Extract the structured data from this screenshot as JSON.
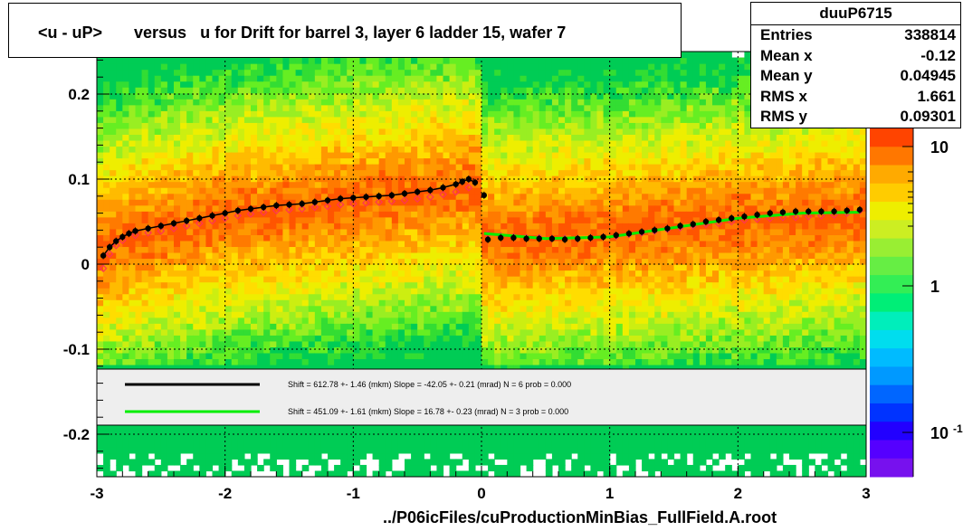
{
  "title": "<u - uP>       versus   u for Drift for barrel 3, layer 6 ladder 15, wafer 7",
  "stats": {
    "name": "duuP6715",
    "rows": [
      {
        "label": "Entries",
        "value": "338814"
      },
      {
        "label": "Mean x",
        "value": "-0.12"
      },
      {
        "label": "Mean y",
        "value": "0.04945"
      },
      {
        "label": "RMS x",
        "value": "1.661"
      },
      {
        "label": "RMS y",
        "value": "0.09301"
      }
    ]
  },
  "footer": "../P06icFiles/cuProductionMinBias_FullField.A.root",
  "legend": [
    {
      "line_color": "#000000",
      "text": "Shift =   612.78 +- 1.46 (mkm) Slope =   -42.05 +- 0.21 (mrad)  N = 6 prob = 0.000"
    },
    {
      "line_color": "#00ee00",
      "text": "Shift =   451.09 +- 1.61 (mkm) Slope =    16.78 +- 0.23 (mrad)  N = 3 prob = 0.000"
    }
  ],
  "colorbar": {
    "tick_labels": [
      "10",
      "1",
      "10"
    ],
    "last_exponent": "-1"
  },
  "chart_data": {
    "type": "heatmap",
    "xlim": [
      -3,
      3
    ],
    "ylim": [
      -0.25,
      0.25
    ],
    "x_ticks": [
      "-3",
      "-2",
      "-1",
      "0",
      "1",
      "2",
      "3"
    ],
    "y_ticks": [
      "0.2",
      "0.1",
      "0",
      "-0.1",
      "-0.2"
    ],
    "y_tick_values": [
      0.2,
      0.1,
      0,
      -0.1,
      -0.2
    ],
    "grid": true,
    "z_scale": "log",
    "series": [
      {
        "color": "#000000",
        "points": [
          [
            -2.95,
            0.01
          ],
          [
            -2.9,
            0.02
          ],
          [
            -2.85,
            0.027
          ],
          [
            -2.8,
            0.032
          ],
          [
            -2.75,
            0.036
          ],
          [
            -2.7,
            0.039
          ],
          [
            -2.6,
            0.042
          ],
          [
            -2.5,
            0.045
          ],
          [
            -2.4,
            0.048
          ],
          [
            -2.3,
            0.051
          ],
          [
            -2.2,
            0.054
          ],
          [
            -2.1,
            0.057
          ],
          [
            -2.0,
            0.06
          ],
          [
            -1.9,
            0.063
          ],
          [
            -1.8,
            0.065
          ],
          [
            -1.7,
            0.067
          ],
          [
            -1.6,
            0.069
          ],
          [
            -1.5,
            0.07
          ],
          [
            -1.4,
            0.071
          ],
          [
            -1.3,
            0.073
          ],
          [
            -1.2,
            0.075
          ],
          [
            -1.1,
            0.077
          ],
          [
            -1.0,
            0.078
          ],
          [
            -0.9,
            0.079
          ],
          [
            -0.8,
            0.08
          ],
          [
            -0.7,
            0.081
          ],
          [
            -0.6,
            0.083
          ],
          [
            -0.5,
            0.085
          ],
          [
            -0.4,
            0.087
          ],
          [
            -0.3,
            0.09
          ],
          [
            -0.2,
            0.094
          ],
          [
            -0.15,
            0.097
          ],
          [
            -0.1,
            0.1
          ],
          [
            -0.05,
            0.096
          ],
          [
            0.02,
            0.081
          ],
          [
            0.05,
            0.029
          ],
          [
            0.15,
            0.031
          ],
          [
            0.25,
            0.031
          ],
          [
            0.35,
            0.03
          ],
          [
            0.45,
            0.03
          ],
          [
            0.55,
            0.03
          ],
          [
            0.65,
            0.029
          ],
          [
            0.75,
            0.03
          ],
          [
            0.85,
            0.031
          ],
          [
            0.95,
            0.032
          ],
          [
            1.05,
            0.034
          ],
          [
            1.15,
            0.036
          ],
          [
            1.25,
            0.038
          ],
          [
            1.35,
            0.04
          ],
          [
            1.45,
            0.042
          ],
          [
            1.55,
            0.045
          ],
          [
            1.65,
            0.047
          ],
          [
            1.75,
            0.05
          ],
          [
            1.85,
            0.052
          ],
          [
            1.95,
            0.054
          ],
          [
            2.05,
            0.056
          ],
          [
            2.15,
            0.058
          ],
          [
            2.25,
            0.06
          ],
          [
            2.35,
            0.061
          ],
          [
            2.45,
            0.062
          ],
          [
            2.55,
            0.062
          ],
          [
            2.65,
            0.062
          ],
          [
            2.75,
            0.062
          ],
          [
            2.85,
            0.063
          ],
          [
            2.95,
            0.064
          ]
        ]
      },
      {
        "color": "#ff3355",
        "points": [
          [
            -2.95,
            -0.005
          ],
          [
            -2.9,
            0.012
          ],
          [
            -2.85,
            0.022
          ],
          [
            -2.8,
            0.028
          ],
          [
            -2.7,
            0.034
          ],
          [
            -2.6,
            0.037
          ],
          [
            -2.5,
            0.039
          ],
          [
            -2.4,
            0.042
          ],
          [
            -2.3,
            0.045
          ],
          [
            -2.2,
            0.048
          ],
          [
            -2.1,
            0.051
          ],
          [
            -2.0,
            0.054
          ],
          [
            -1.9,
            0.057
          ],
          [
            -1.8,
            0.059
          ],
          [
            -1.7,
            0.061
          ],
          [
            -1.6,
            0.063
          ],
          [
            -1.5,
            0.064
          ],
          [
            -1.4,
            0.065
          ],
          [
            -1.3,
            0.067
          ],
          [
            -1.2,
            0.068
          ],
          [
            -1.1,
            0.07
          ],
          [
            -1.0,
            0.071
          ],
          [
            -0.9,
            0.072
          ],
          [
            -0.8,
            0.073
          ],
          [
            -0.7,
            0.074
          ],
          [
            -0.6,
            0.075
          ],
          [
            -0.5,
            0.077
          ],
          [
            -0.4,
            0.079
          ],
          [
            -0.3,
            0.082
          ],
          [
            -0.2,
            0.085
          ],
          [
            -0.1,
            0.09
          ],
          [
            0.05,
            0.035
          ],
          [
            0.15,
            0.033
          ],
          [
            0.25,
            0.032
          ],
          [
            0.35,
            0.031
          ],
          [
            0.45,
            0.031
          ],
          [
            0.55,
            0.03
          ],
          [
            0.65,
            0.03
          ],
          [
            0.75,
            0.03
          ],
          [
            0.85,
            0.031
          ],
          [
            0.95,
            0.032
          ],
          [
            1.05,
            0.033
          ],
          [
            1.15,
            0.035
          ],
          [
            1.25,
            0.037
          ],
          [
            1.35,
            0.039
          ],
          [
            1.45,
            0.041
          ],
          [
            1.55,
            0.043
          ],
          [
            1.65,
            0.045
          ],
          [
            1.75,
            0.047
          ],
          [
            1.85,
            0.048
          ],
          [
            1.95,
            0.05
          ],
          [
            2.05,
            0.052
          ],
          [
            2.15,
            0.053
          ],
          [
            2.25,
            0.054
          ],
          [
            2.35,
            0.055
          ],
          [
            2.45,
            0.055
          ],
          [
            2.55,
            0.056
          ],
          [
            2.65,
            0.057
          ],
          [
            2.75,
            0.058
          ],
          [
            2.85,
            0.06
          ],
          [
            2.95,
            0.063
          ]
        ]
      }
    ],
    "fits": [
      {
        "color": "#00ee00",
        "points": [
          [
            0.02,
            0.036
          ],
          [
            0.5,
            0.03
          ],
          [
            1.0,
            0.032
          ],
          [
            1.5,
            0.043
          ],
          [
            2.0,
            0.054
          ],
          [
            2.5,
            0.06
          ],
          [
            2.95,
            0.061
          ]
        ]
      }
    ]
  }
}
